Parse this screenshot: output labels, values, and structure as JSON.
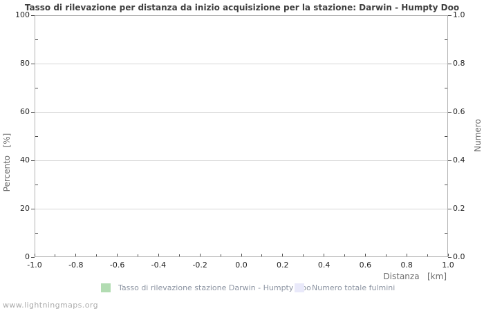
{
  "title": "Tasso di rilevazione per distanza da inizio acquisizione per la stazione: Darwin - Humpty Doo",
  "footer": "www.lightningmaps.org",
  "chart_data": {
    "type": "bar",
    "title": "Tasso di rilevazione per distanza da inizio acquisizione per la stazione: Darwin - Humpty Doo",
    "xlabel": "Distanza   [km]",
    "ylabel_left": "Percento   [%]",
    "ylabel_right": "Numero",
    "xlim": [
      -1.0,
      1.0
    ],
    "ylim_left": [
      0,
      100
    ],
    "ylim_right": [
      0.0,
      1.0
    ],
    "x_ticks": [
      "-1.0",
      "-0.8",
      "-0.6",
      "-0.4",
      "-0.2",
      "0.0",
      "0.2",
      "0.4",
      "0.6",
      "0.8",
      "1.0"
    ],
    "y_ticks_left": [
      "0",
      "20",
      "40",
      "60",
      "80",
      "100"
    ],
    "y_ticks_right": [
      "0.0",
      "0.2",
      "0.4",
      "0.6",
      "0.8",
      "1.0"
    ],
    "grid": "horizontal-only",
    "legend_position": "bottom",
    "x": [],
    "series": [
      {
        "name": "Tasso di rilevazione stazione Darwin - Humpty Doo",
        "color": "#b2dcb2",
        "axis": "left",
        "values": []
      },
      {
        "name": "Numero totale fulmini",
        "color": "#e9e9fa",
        "axis": "right",
        "values": []
      }
    ]
  },
  "colors": {
    "frame": "#b0b0b0",
    "gridline": "#d6d6d6",
    "title_text": "#3f3f3f",
    "axis_label_text": "#6b6b6b",
    "legend_text": "#8b93a1",
    "footer_text": "#ababab"
  }
}
